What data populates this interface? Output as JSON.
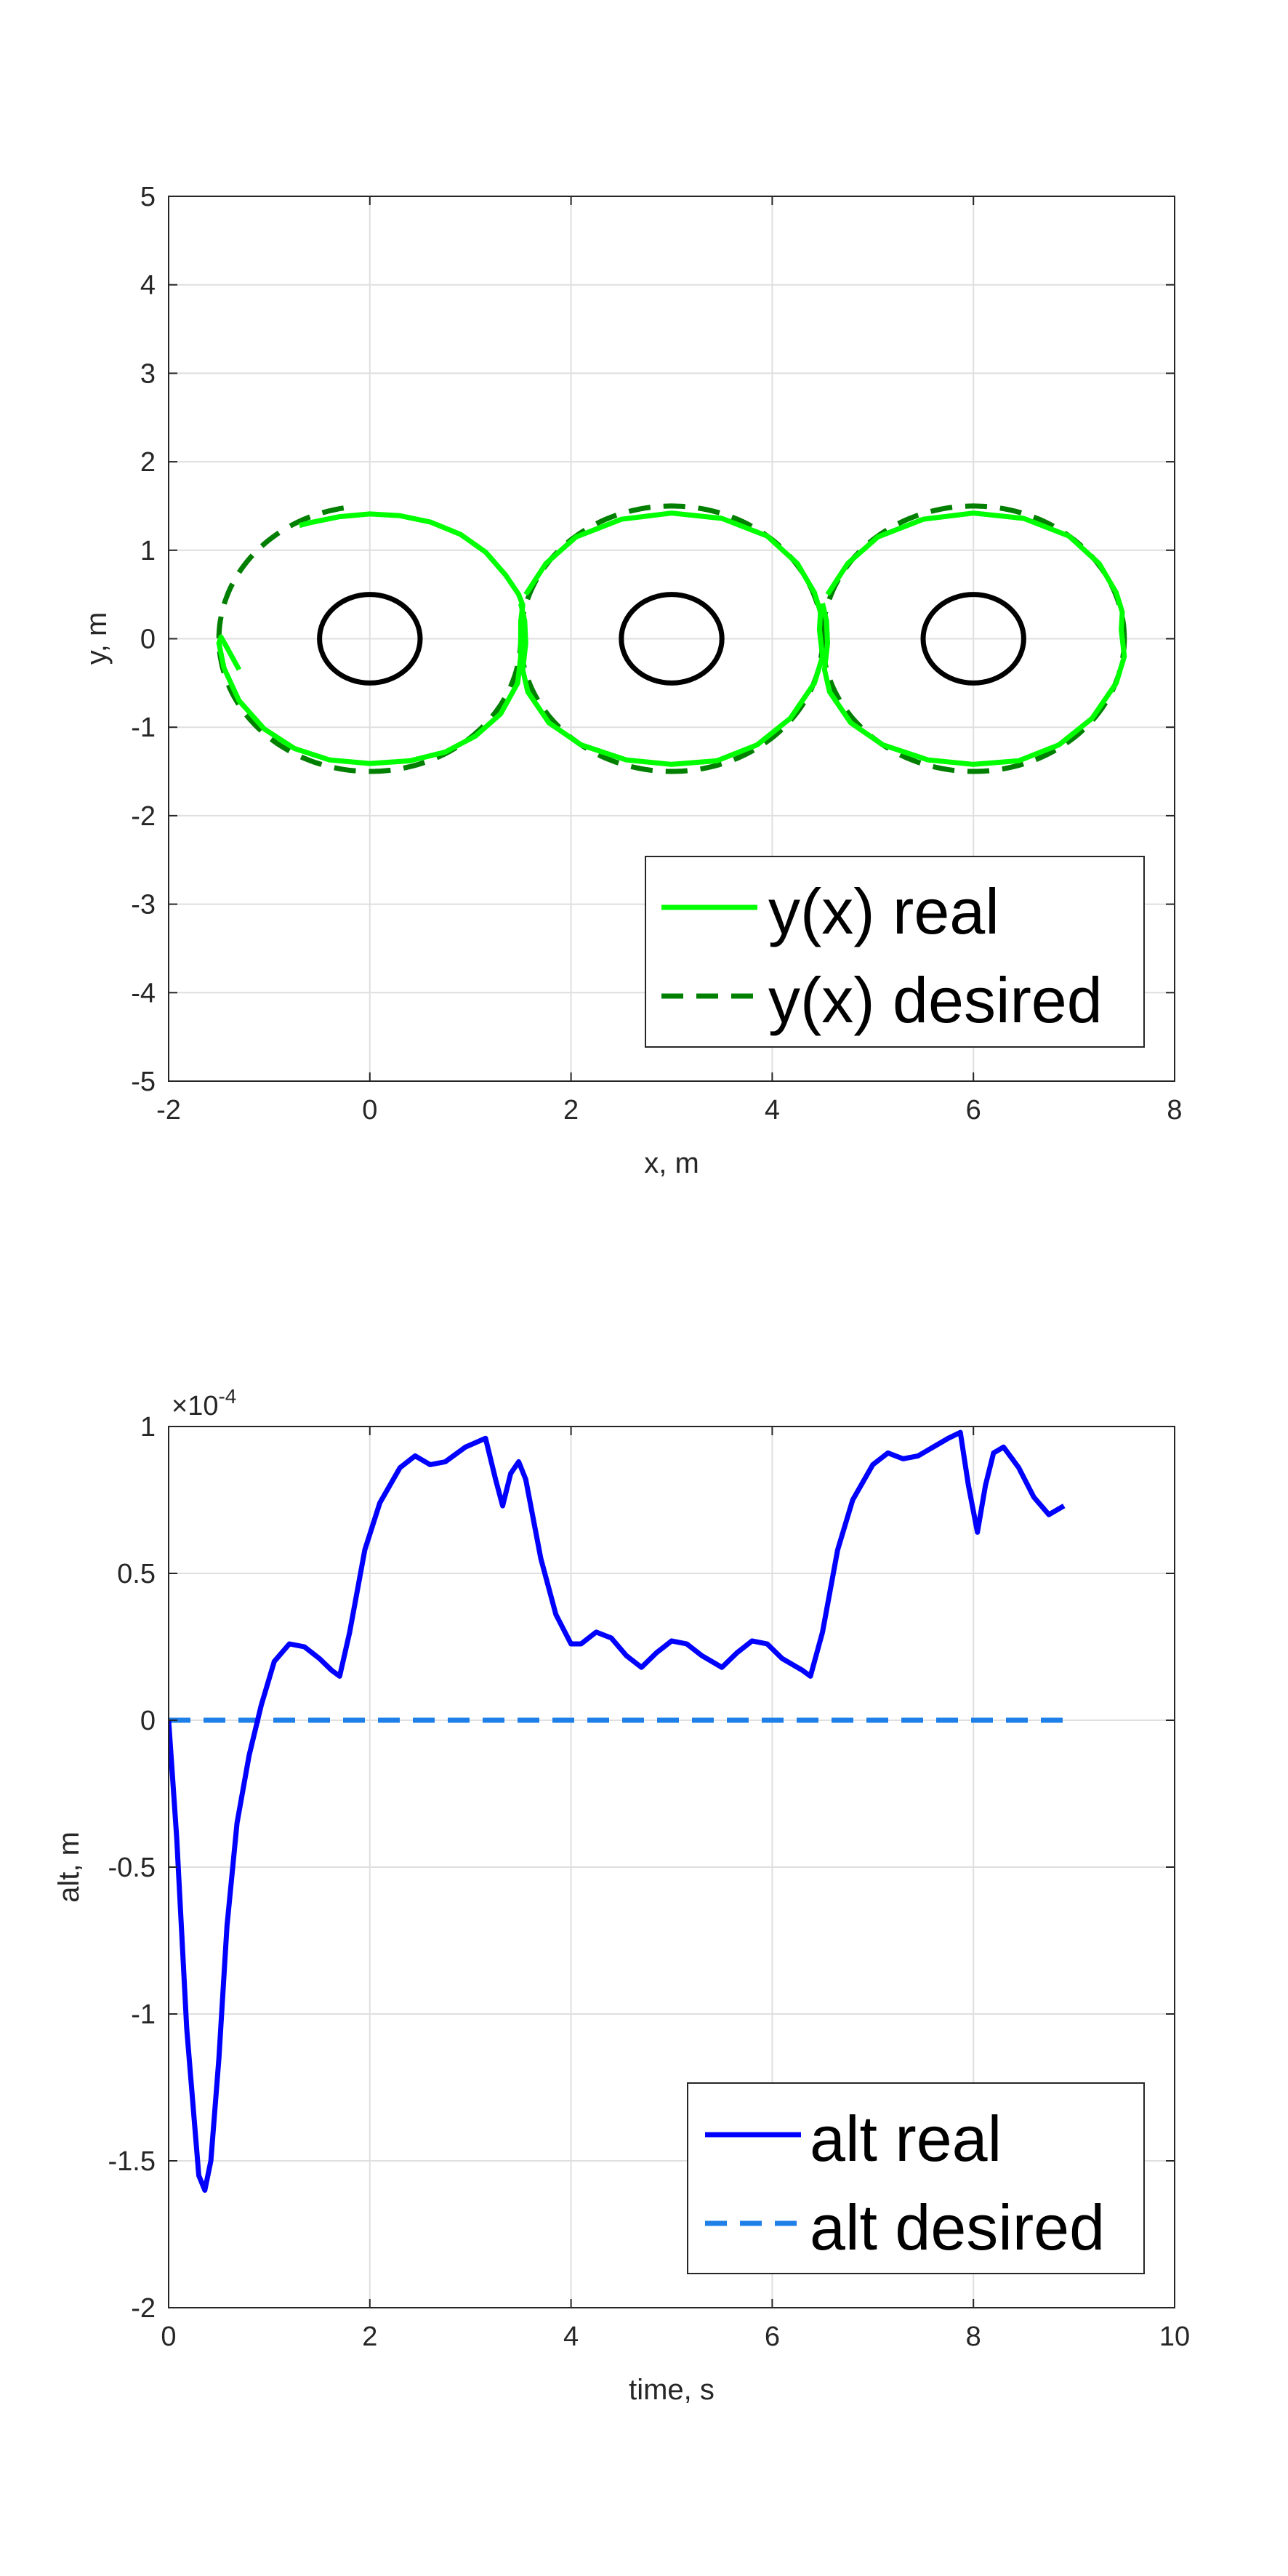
{
  "chart_data": [
    {
      "type": "line",
      "xlabel": "x, m",
      "ylabel": "y, m",
      "xlim": [
        -2,
        8
      ],
      "ylim": [
        -5,
        5
      ],
      "xticks": [
        "-2",
        "0",
        "2",
        "4",
        "6",
        "8"
      ],
      "yticks": [
        "-5",
        "-4",
        "-3",
        "-2",
        "-1",
        "0",
        "1",
        "2",
        "3",
        "4",
        "5"
      ],
      "grid": true,
      "legend_position": "bottom-right",
      "obstacles": [
        {
          "cx": 0,
          "cy": 0,
          "rx": 0.5,
          "ry": 0.5
        },
        {
          "cx": 3,
          "cy": 0,
          "rx": 0.5,
          "ry": 0.5
        },
        {
          "cx": 6,
          "cy": 0,
          "rx": 0.5,
          "ry": 0.5
        }
      ],
      "series": [
        {
          "name": "y(x) real",
          "style": "solid",
          "color": "#00ff00",
          "points": [
            [
              -0.7,
              1.28
            ],
            [
              -0.6,
              1.31
            ],
            [
              -0.3,
              1.38
            ],
            [
              0,
              1.41
            ],
            [
              0.3,
              1.39
            ],
            [
              0.6,
              1.32
            ],
            [
              0.9,
              1.18
            ],
            [
              1.15,
              0.98
            ],
            [
              1.35,
              0.72
            ],
            [
              1.48,
              0.5
            ],
            [
              1.52,
              0.38
            ],
            [
              1.5,
              0.2
            ],
            [
              1.5,
              -0.2
            ],
            [
              1.47,
              -0.5
            ],
            [
              1.3,
              -0.85
            ],
            [
              1.05,
              -1.1
            ],
            [
              0.75,
              -1.28
            ],
            [
              0.4,
              -1.38
            ],
            [
              0,
              -1.41
            ],
            [
              -0.4,
              -1.37
            ],
            [
              -0.75,
              -1.24
            ],
            [
              -1.05,
              -1.02
            ],
            [
              -1.3,
              -0.7
            ],
            [
              -1.45,
              -0.33
            ],
            [
              -1.5,
              -0.05
            ],
            [
              -1.48,
              0.02
            ],
            [
              -1.42,
              -0.1
            ],
            [
              -1.3,
              -0.35
            ]
          ],
          "points_circle_chain": [
            [
              1.55,
              0.5
            ],
            [
              1.75,
              0.85
            ],
            [
              2.05,
              1.15
            ],
            [
              2.5,
              1.35
            ],
            [
              3,
              1.42
            ],
            [
              3.5,
              1.36
            ],
            [
              3.95,
              1.16
            ],
            [
              4.25,
              0.85
            ],
            [
              4.42,
              0.52
            ],
            [
              4.48,
              0.3
            ],
            [
              4.47,
              0.1
            ],
            [
              4.5,
              -0.2
            ],
            [
              4.42,
              -0.5
            ],
            [
              4.18,
              -0.9
            ],
            [
              3.85,
              -1.2
            ],
            [
              3.45,
              -1.38
            ],
            [
              3,
              -1.42
            ],
            [
              2.55,
              -1.37
            ],
            [
              2.1,
              -1.2
            ],
            [
              1.78,
              -0.95
            ],
            [
              1.57,
              -0.6
            ],
            [
              1.52,
              -0.35
            ],
            [
              1.55,
              -0.05
            ],
            [
              1.54,
              0.2
            ],
            [
              1.5,
              0.4
            ]
          ]
        },
        {
          "name": "y(x) desired",
          "style": "dashed",
          "color": "#007f00"
        }
      ]
    },
    {
      "type": "line",
      "xlabel": "time, s",
      "ylabel": "alt, m",
      "xlim": [
        0,
        10
      ],
      "ylim": [
        -2,
        1
      ],
      "y_multiplier": "×10",
      "y_multiplier_exponent": "-4",
      "xticks": [
        "0",
        "2",
        "4",
        "6",
        "8",
        "10"
      ],
      "yticks": [
        "-2",
        "-1.5",
        "-1",
        "-0.5",
        "0",
        "0.5",
        "1"
      ],
      "grid": true,
      "legend_position": "bottom-right",
      "series": [
        {
          "name": "alt real",
          "style": "solid",
          "color": "#0000ff",
          "points": [
            [
              0,
              0
            ],
            [
              0.08,
              -0.4
            ],
            [
              0.18,
              -1.05
            ],
            [
              0.3,
              -1.55
            ],
            [
              0.36,
              -1.6
            ],
            [
              0.42,
              -1.5
            ],
            [
              0.5,
              -1.15
            ],
            [
              0.58,
              -0.7
            ],
            [
              0.68,
              -0.35
            ],
            [
              0.8,
              -0.12
            ],
            [
              0.92,
              0.05
            ],
            [
              1.05,
              0.2
            ],
            [
              1.2,
              0.26
            ],
            [
              1.35,
              0.25
            ],
            [
              1.5,
              0.21
            ],
            [
              1.62,
              0.17
            ],
            [
              1.7,
              0.15
            ],
            [
              1.8,
              0.3
            ],
            [
              1.95,
              0.58
            ],
            [
              2.1,
              0.74
            ],
            [
              2.3,
              0.86
            ],
            [
              2.45,
              0.9
            ],
            [
              2.6,
              0.87
            ],
            [
              2.75,
              0.88
            ],
            [
              2.95,
              0.93
            ],
            [
              3.15,
              0.96
            ],
            [
              3.25,
              0.82
            ],
            [
              3.32,
              0.73
            ],
            [
              3.4,
              0.84
            ],
            [
              3.48,
              0.88
            ],
            [
              3.55,
              0.82
            ],
            [
              3.7,
              0.55
            ],
            [
              3.85,
              0.36
            ],
            [
              4,
              0.26
            ],
            [
              4.1,
              0.26
            ],
            [
              4.25,
              0.3
            ],
            [
              4.4,
              0.28
            ],
            [
              4.55,
              0.22
            ],
            [
              4.7,
              0.18
            ],
            [
              4.85,
              0.23
            ],
            [
              5,
              0.27
            ],
            [
              5.15,
              0.26
            ],
            [
              5.3,
              0.22
            ],
            [
              5.5,
              0.18
            ],
            [
              5.65,
              0.23
            ],
            [
              5.8,
              0.27
            ],
            [
              5.95,
              0.26
            ],
            [
              6.1,
              0.21
            ],
            [
              6.3,
              0.17
            ],
            [
              6.38,
              0.15
            ],
            [
              6.5,
              0.3
            ],
            [
              6.65,
              0.58
            ],
            [
              6.8,
              0.75
            ],
            [
              7,
              0.87
            ],
            [
              7.15,
              0.91
            ],
            [
              7.3,
              0.89
            ],
            [
              7.45,
              0.9
            ],
            [
              7.6,
              0.93
            ],
            [
              7.75,
              0.96
            ],
            [
              7.87,
              0.98
            ],
            [
              7.95,
              0.8
            ],
            [
              8.04,
              0.64
            ],
            [
              8.12,
              0.8
            ],
            [
              8.2,
              0.91
            ],
            [
              8.3,
              0.93
            ],
            [
              8.45,
              0.86
            ],
            [
              8.6,
              0.76
            ],
            [
              8.75,
              0.7
            ],
            [
              8.9,
              0.73
            ]
          ]
        },
        {
          "name": "alt desired",
          "style": "dashed",
          "color": "#1e7fe8",
          "points": [
            [
              0,
              0
            ],
            [
              8.9,
              0
            ]
          ]
        }
      ]
    }
  ]
}
